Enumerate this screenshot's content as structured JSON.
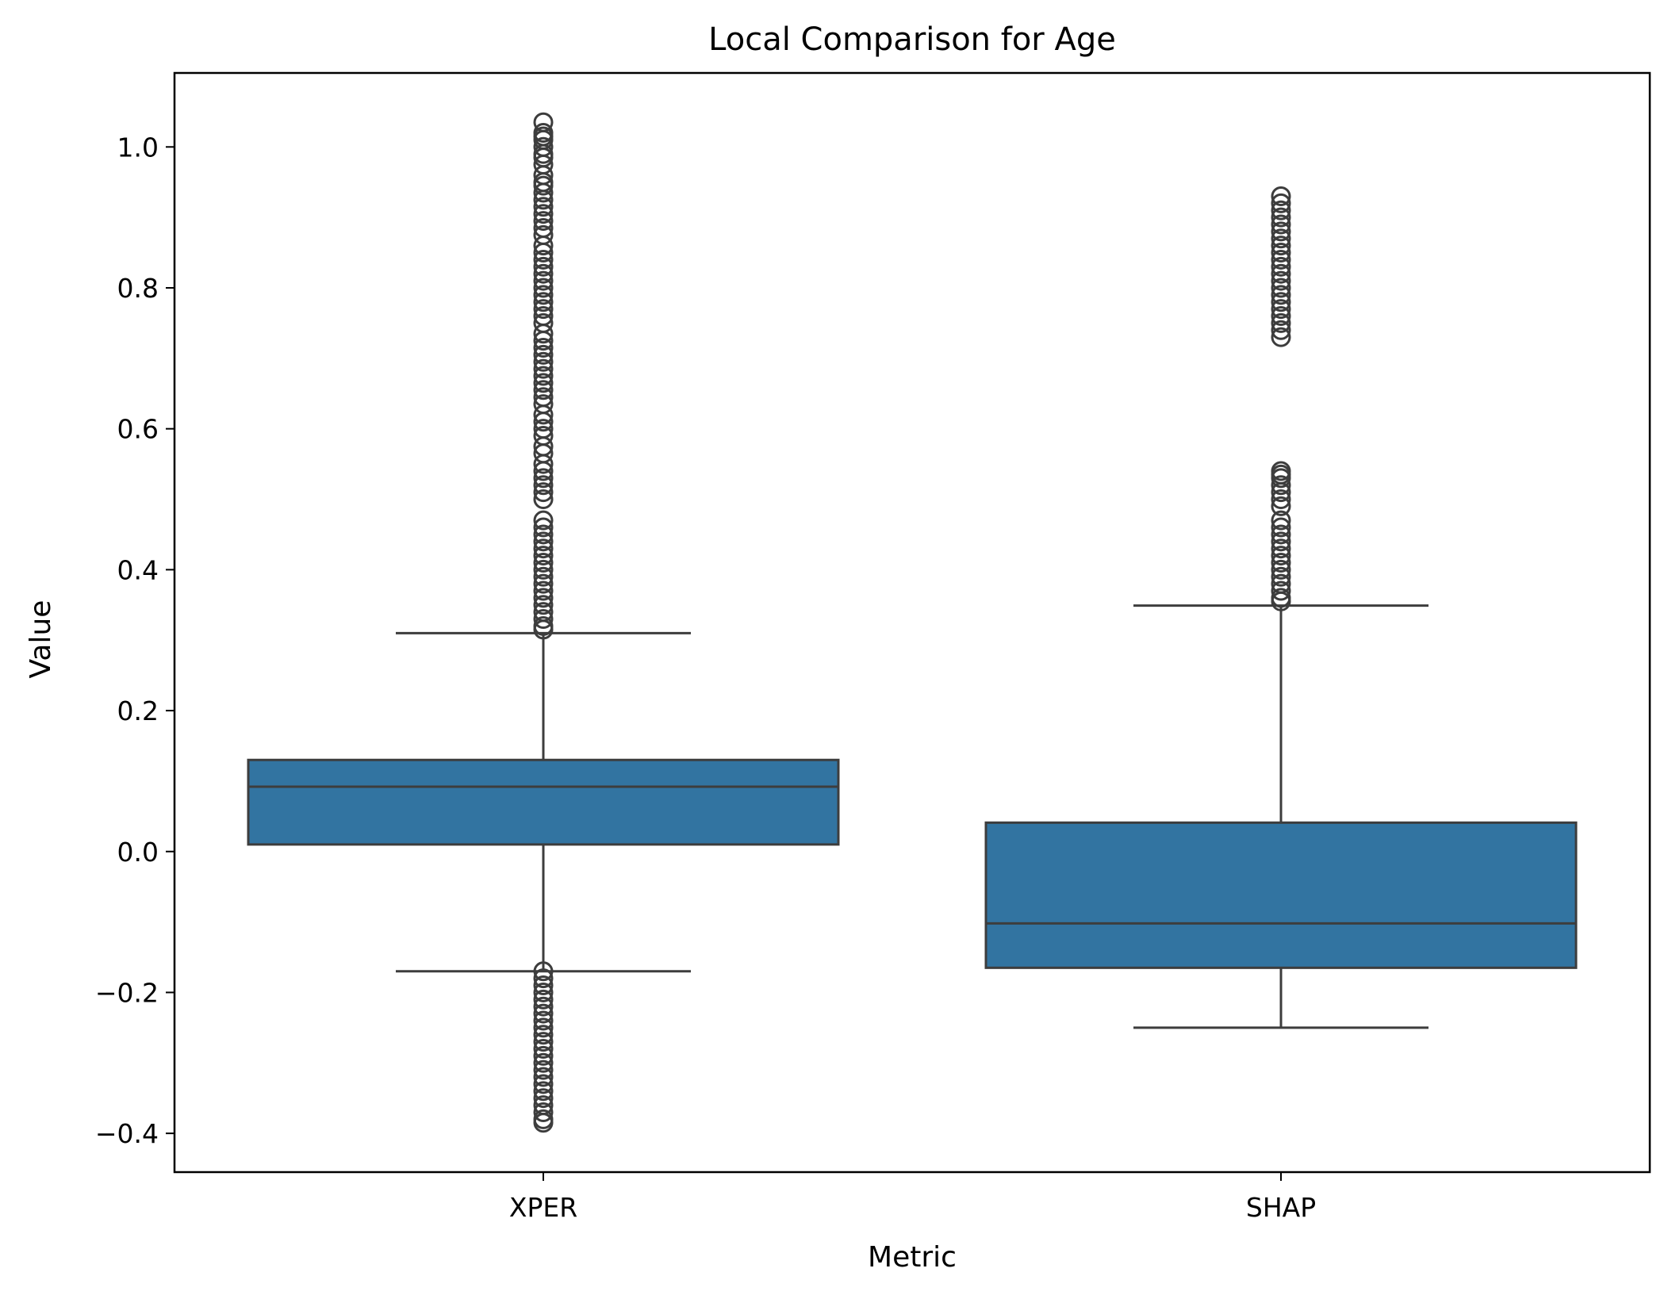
{
  "chart_data": {
    "type": "box",
    "title": "Local Comparison for Age",
    "xlabel": "Metric",
    "ylabel": "Value",
    "ylim": [
      -0.455,
      1.105
    ],
    "yticks": [
      -0.4,
      -0.2,
      0.0,
      0.2,
      0.4,
      0.6,
      0.8,
      1.0
    ],
    "ytick_labels": [
      "−0.4",
      "−0.2",
      "0.0",
      "0.2",
      "0.4",
      "0.6",
      "0.8",
      "1.0"
    ],
    "categories": [
      "XPER",
      "SHAP"
    ],
    "grid": false,
    "legend": false,
    "colors": {
      "box_fill": "#3274a1",
      "line": "#3d3d3d",
      "frame": "#000000"
    },
    "boxes": [
      {
        "category": "XPER",
        "q1": 0.01,
        "median": 0.092,
        "q3": 0.13,
        "whisker_low": -0.17,
        "whisker_high": 0.31,
        "outliers": [
          1.035,
          1.02,
          1.015,
          1.01,
          1.0,
          0.99,
          0.985,
          0.975,
          0.96,
          0.95,
          0.945,
          0.935,
          0.925,
          0.915,
          0.905,
          0.895,
          0.885,
          0.875,
          0.86,
          0.85,
          0.84,
          0.83,
          0.82,
          0.81,
          0.8,
          0.79,
          0.78,
          0.77,
          0.76,
          0.75,
          0.735,
          0.725,
          0.715,
          0.705,
          0.695,
          0.685,
          0.675,
          0.665,
          0.655,
          0.645,
          0.635,
          0.62,
          0.61,
          0.6,
          0.59,
          0.575,
          0.565,
          0.55,
          0.54,
          0.53,
          0.52,
          0.51,
          0.5,
          0.47,
          0.46,
          0.45,
          0.44,
          0.43,
          0.42,
          0.41,
          0.4,
          0.39,
          0.38,
          0.37,
          0.36,
          0.35,
          0.34,
          0.33,
          0.32,
          0.315,
          -0.17,
          -0.18,
          -0.19,
          -0.2,
          -0.21,
          -0.22,
          -0.23,
          -0.24,
          -0.25,
          -0.26,
          -0.27,
          -0.28,
          -0.29,
          -0.3,
          -0.31,
          -0.32,
          -0.33,
          -0.34,
          -0.35,
          -0.36,
          -0.37,
          -0.38,
          -0.385
        ]
      },
      {
        "category": "SHAP",
        "q1": -0.165,
        "median": -0.102,
        "q3": 0.041,
        "whisker_low": -0.25,
        "whisker_high": 0.349,
        "outliers": [
          0.93,
          0.92,
          0.91,
          0.9,
          0.89,
          0.88,
          0.87,
          0.86,
          0.85,
          0.84,
          0.83,
          0.82,
          0.81,
          0.8,
          0.79,
          0.78,
          0.77,
          0.76,
          0.75,
          0.74,
          0.73,
          0.54,
          0.535,
          0.53,
          0.52,
          0.51,
          0.5,
          0.49,
          0.47,
          0.46,
          0.45,
          0.44,
          0.43,
          0.42,
          0.41,
          0.4,
          0.39,
          0.38,
          0.37,
          0.36,
          0.355
        ]
      }
    ]
  }
}
